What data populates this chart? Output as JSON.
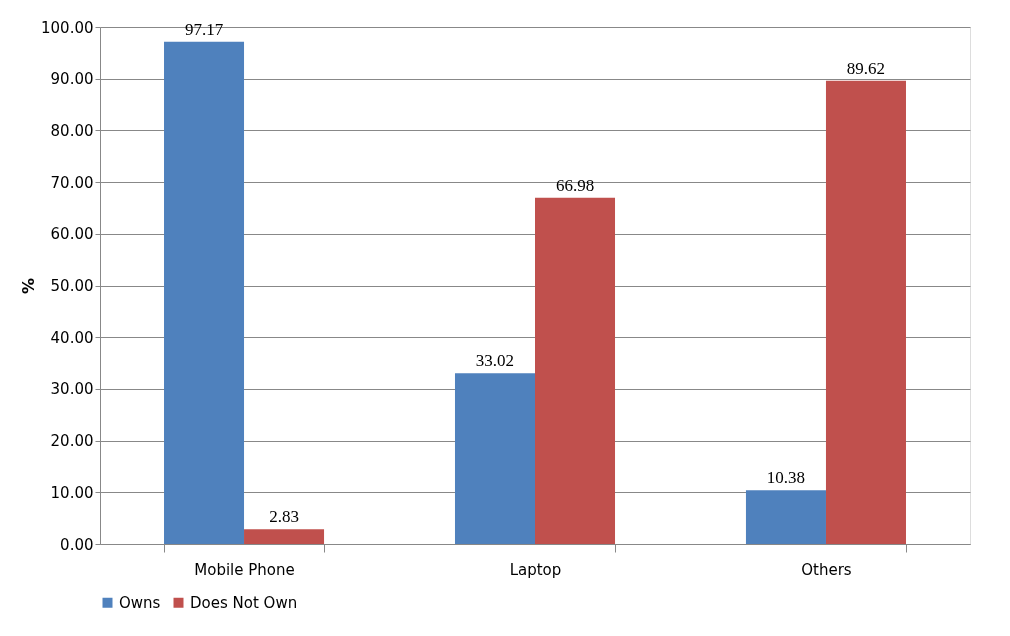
{
  "chart_data": {
    "type": "bar",
    "categories": [
      "Mobile Phone",
      "Laptop",
      "Others"
    ],
    "series": [
      {
        "name": "Owns",
        "color": "#4f81bd",
        "values": [
          97.17,
          33.02,
          10.38
        ]
      },
      {
        "name": "Does Not Own",
        "color": "#c0504d",
        "values": [
          2.83,
          66.98,
          89.62
        ]
      }
    ],
    "ylabel": "%",
    "ylim": [
      0,
      100
    ],
    "yticks": [
      {
        "value": 0,
        "label": "0.00"
      },
      {
        "value": 10,
        "label": "10.00"
      },
      {
        "value": 20,
        "label": "20.00"
      },
      {
        "value": 30,
        "label": "30.00"
      },
      {
        "value": 40,
        "label": "40.00"
      },
      {
        "value": 50,
        "label": "50.00"
      },
      {
        "value": 60,
        "label": "60.00"
      },
      {
        "value": 70,
        "label": "70.00"
      },
      {
        "value": 80,
        "label": "80.00"
      },
      {
        "value": 90,
        "label": "90.00"
      },
      {
        "value": 100,
        "label": "100.00"
      }
    ],
    "data_labels": true,
    "grid": "y",
    "legend": "bottom"
  }
}
